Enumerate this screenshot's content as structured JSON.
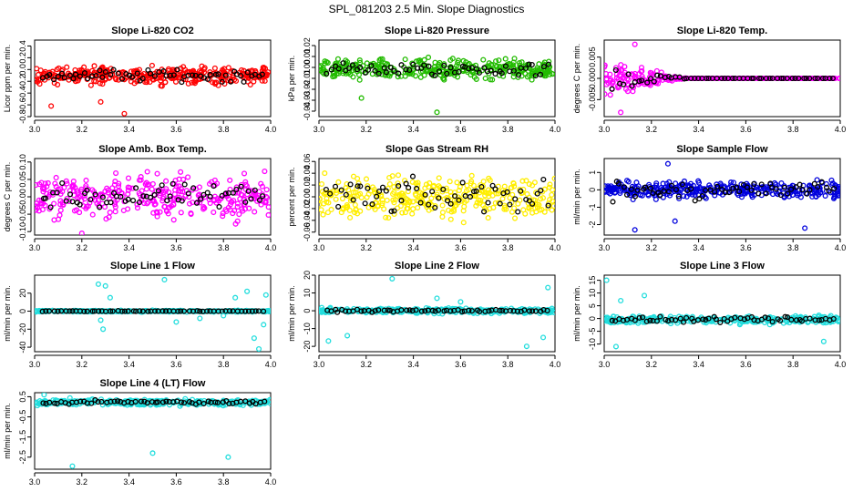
{
  "title": "SPL_081203  2.5 Min. Slope Diagnostics",
  "colors": {
    "red": "#ff0000",
    "green": "#22bb00",
    "magenta": "#ff00ff",
    "yellow": "#ffee00",
    "blue": "#0000dd",
    "cyan": "#22dddd",
    "black": "#000000"
  },
  "chart_data": [
    {
      "type": "scatter",
      "title": "Slope Li-820 CO2",
      "ylabel": "Licor ppm per min.",
      "color": "red",
      "xlim": [
        3.0,
        4.0
      ],
      "ylim": [
        -0.8,
        0.5
      ],
      "yticks": [
        -0.8,
        -0.6,
        -0.4,
        -0.2,
        0.0,
        0.2,
        0.4
      ],
      "yticklabels": [
        "-0.8",
        "-0.6",
        "-0.4",
        "-0.2",
        "0.0",
        "0.2",
        "0.4"
      ],
      "series": {
        "n": 330,
        "center": -0.1,
        "spread": 0.42,
        "black_spread": 0.3,
        "outliers": [
          [
            3.38,
            -0.75
          ],
          [
            3.07,
            -0.62
          ],
          [
            3.28,
            -0.55
          ]
        ]
      }
    },
    {
      "type": "scatter",
      "title": "Slope Li-820 Pressure",
      "ylabel": "kPa per min.",
      "color": "green",
      "xlim": [
        3.0,
        4.0
      ],
      "ylim": [
        -0.045,
        0.025
      ],
      "yticks": [
        -0.04,
        -0.03,
        -0.02,
        -0.01,
        0.0,
        0.01,
        0.02
      ],
      "yticklabels": [
        "-0.04",
        "-0.03",
        "-0.02",
        "-0.01",
        "0.00",
        "0.01",
        "0.02"
      ],
      "series": {
        "n": 330,
        "center": -0.002,
        "spread": 0.026,
        "black_spread": 0.018,
        "outliers": [
          [
            3.5,
            -0.041
          ],
          [
            3.18,
            -0.028
          ]
        ]
      }
    },
    {
      "type": "scatter",
      "title": "Slope Li-820 Temp.",
      "ylabel": "degrees C per min.",
      "color": "magenta",
      "xlim": [
        3.0,
        4.0
      ],
      "ylim": [
        -0.009,
        0.009
      ],
      "yticks": [
        -0.005,
        0.0,
        0.005
      ],
      "yticklabels": [
        "-0.005",
        "0.000",
        "0.005"
      ],
      "series": {
        "n": 330,
        "center": 0.0,
        "spread": 0.0,
        "black_spread": 0.0,
        "decay": 3.35,
        "decay_spread": 0.013,
        "outliers": [
          [
            3.13,
            0.008
          ],
          [
            3.07,
            -0.008
          ]
        ]
      }
    },
    {
      "type": "scatter",
      "title": "Slope Amb. Box Temp.",
      "ylabel": "degrees C per min.",
      "color": "magenta",
      "xlim": [
        3.0,
        4.0
      ],
      "ylim": [
        -0.11,
        0.11
      ],
      "yticks": [
        -0.1,
        -0.05,
        0.0,
        0.05,
        0.1
      ],
      "yticklabels": [
        "-0.10",
        "-0.05",
        "0.00",
        "0.05",
        "0.10"
      ],
      "series": {
        "n": 330,
        "center": 0.0,
        "spread": 0.18,
        "black_spread": 0.1,
        "outliers": [
          [
            3.2,
            -0.105
          ]
        ]
      }
    },
    {
      "type": "scatter",
      "title": "Slope Gas Stream RH",
      "ylabel": "percent per min.",
      "color": "yellow",
      "xlim": [
        3.0,
        4.0
      ],
      "ylim": [
        -0.065,
        0.065
      ],
      "yticks": [
        -0.06,
        -0.04,
        -0.02,
        0.0,
        0.02,
        0.04,
        0.06
      ],
      "yticklabels": [
        "-0.06",
        "-0.04",
        "-0.02",
        "0.00",
        "0.02",
        "0.04",
        "0.06"
      ],
      "series": {
        "n": 330,
        "center": 0.0,
        "spread": 0.1,
        "black_spread": 0.08,
        "outliers": []
      }
    },
    {
      "type": "scatter",
      "title": "Slope Sample Flow",
      "ylabel": "ml/min per min.",
      "color": "blue",
      "xlim": [
        3.0,
        4.0
      ],
      "ylim": [
        -2.6,
        1.8
      ],
      "yticks": [
        -2,
        -1,
        0,
        1
      ],
      "yticklabels": [
        "-2",
        "-1",
        "0",
        "1"
      ],
      "series": {
        "n": 330,
        "center": 0.0,
        "spread": 1.4,
        "black_spread": 1.6,
        "outliers": [
          [
            3.27,
            1.5
          ],
          [
            3.13,
            -2.3
          ],
          [
            3.85,
            -2.2
          ],
          [
            3.3,
            -1.8
          ]
        ]
      }
    },
    {
      "type": "scatter",
      "title": "Slope Line 1 Flow",
      "ylabel": "ml/min per min.",
      "color": "cyan",
      "xlim": [
        3.0,
        4.0
      ],
      "ylim": [
        -45,
        40
      ],
      "yticks": [
        -40,
        -20,
        0,
        20
      ],
      "yticklabels": [
        "-40",
        "-20",
        "0",
        "20"
      ],
      "series": {
        "n": 330,
        "center": 0.0,
        "spread": 2.5,
        "black_spread": 1.0,
        "outliers": [
          [
            3.27,
            30
          ],
          [
            3.3,
            28
          ],
          [
            3.28,
            -10
          ],
          [
            3.29,
            -20
          ],
          [
            3.55,
            35
          ],
          [
            3.95,
            -42
          ],
          [
            3.93,
            -30
          ],
          [
            3.9,
            22
          ],
          [
            3.98,
            18
          ],
          [
            3.6,
            -12
          ],
          [
            3.7,
            -8
          ],
          [
            3.85,
            15
          ],
          [
            3.97,
            -15
          ],
          [
            3.32,
            15
          ],
          [
            3.8,
            -5
          ]
        ]
      }
    },
    {
      "type": "scatter",
      "title": "Slope Line 2 Flow",
      "ylabel": "ml/min per min.",
      "color": "cyan",
      "xlim": [
        3.0,
        4.0
      ],
      "ylim": [
        -23,
        20
      ],
      "yticks": [
        -20,
        -10,
        0,
        10,
        20
      ],
      "yticklabels": [
        "-20",
        "-10",
        "0",
        "10",
        "20"
      ],
      "series": {
        "n": 330,
        "center": 0.0,
        "spread": 4.0,
        "black_spread": 2.0,
        "outliers": [
          [
            3.04,
            -17
          ],
          [
            3.31,
            18
          ],
          [
            3.12,
            -14
          ],
          [
            3.88,
            -20
          ],
          [
            3.97,
            13
          ],
          [
            3.95,
            -15
          ],
          [
            3.5,
            7
          ],
          [
            3.6,
            5
          ]
        ]
      }
    },
    {
      "type": "scatter",
      "title": "Slope Line 3 Flow",
      "ylabel": "ml/min per min.",
      "color": "cyan",
      "xlim": [
        3.0,
        4.0
      ],
      "ylim": [
        -13,
        17
      ],
      "yticks": [
        -10,
        -5,
        0,
        5,
        10,
        15
      ],
      "yticklabels": [
        "-10",
        "-5",
        "0",
        "5",
        "10",
        "15"
      ],
      "series": {
        "n": 330,
        "center": -0.5,
        "spread": 4.0,
        "black_spread": 3.0,
        "outliers": [
          [
            3.01,
            15
          ],
          [
            3.05,
            -11
          ],
          [
            3.17,
            9
          ],
          [
            3.93,
            -9
          ],
          [
            3.07,
            7
          ]
        ]
      }
    },
    {
      "type": "scatter",
      "title": "Slope Line 4 (LT) Flow",
      "ylabel": "ml/min per min.",
      "color": "cyan",
      "xlim": [
        3.0,
        4.0
      ],
      "ylim": [
        -3.1,
        0.7
      ],
      "yticks": [
        -2.5,
        -1.5,
        -0.5,
        0.5
      ],
      "yticklabels": [
        "-2.5",
        "-1.5",
        "-0.5",
        "0.5"
      ],
      "series": {
        "n": 330,
        "center": 0.22,
        "spread": 0.45,
        "black_spread": 0.25,
        "outliers": [
          [
            3.16,
            -2.95
          ],
          [
            3.5,
            -2.3
          ],
          [
            3.82,
            -2.5
          ],
          [
            3.04,
            0.6
          ]
        ]
      }
    }
  ]
}
